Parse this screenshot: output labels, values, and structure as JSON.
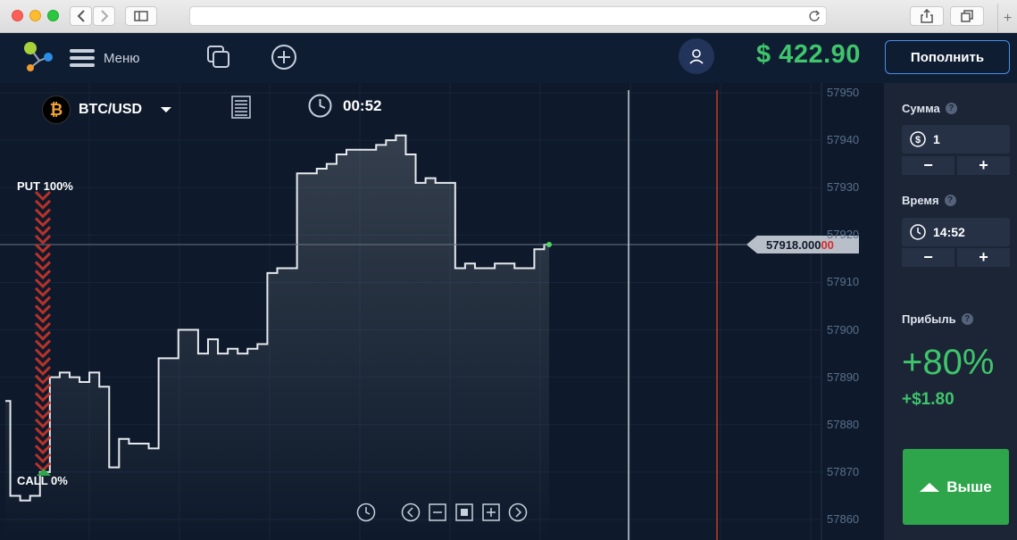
{
  "browser": {
    "icons": [
      "back-icon",
      "forward-icon",
      "sidebar-icon",
      "reload-icon",
      "share-icon",
      "tabs-icon",
      "new-tab-icon"
    ]
  },
  "header": {
    "menu_label": "Меню",
    "balance": "$ 422.90",
    "deposit_label": "Пополнить",
    "colors": {
      "balance": "#3fc56b",
      "deposit_border": "#4a8fe8"
    }
  },
  "chart": {
    "asset": "BTC/USD",
    "asset_icon": "bitcoin-icon",
    "timer": "00:52",
    "put_label": "PUT 100%",
    "call_label": "CALL 0%",
    "current_price": "57918.000",
    "current_price_suffix": "00",
    "y_ticks": [
      "57950",
      "57940",
      "57930",
      "57920",
      "57910",
      "57900",
      "57890",
      "57880",
      "57870",
      "57860"
    ]
  },
  "chart_data": {
    "type": "line",
    "series": [
      {
        "values": [
          57885,
          57865,
          57864,
          57865,
          57870,
          57890,
          57891,
          57890,
          57889,
          57891,
          57888,
          57871,
          57877,
          57876,
          57876,
          57875,
          57894,
          57894,
          57900,
          57900,
          57895,
          57898,
          57895,
          57896,
          57895,
          57896,
          57897,
          57912,
          57913,
          57913,
          57933,
          57933,
          57934,
          57935,
          57937,
          57938,
          57938,
          57938,
          57939,
          57940,
          57941,
          57937,
          57931,
          57932,
          57931,
          57931,
          57913,
          57914,
          57913,
          57913,
          57914,
          57914,
          57913,
          57913,
          57917,
          57918
        ]
      }
    ],
    "ylim": [
      57858,
      57952
    ],
    "current_value": 57918,
    "grid": true
  },
  "panel": {
    "amount_label": "Сумма",
    "amount_value": "1",
    "time_label": "Время",
    "time_value": "14:52",
    "minus": "−",
    "plus": "+",
    "profit_label": "Прибыль",
    "profit_percent": "+80%",
    "profit_amount": "+$1.80",
    "higher_label": "Выше",
    "colors": {
      "panel_bg": "#1b2536",
      "profit": "#3fc56b",
      "higher_button": "#2ea54a"
    }
  }
}
